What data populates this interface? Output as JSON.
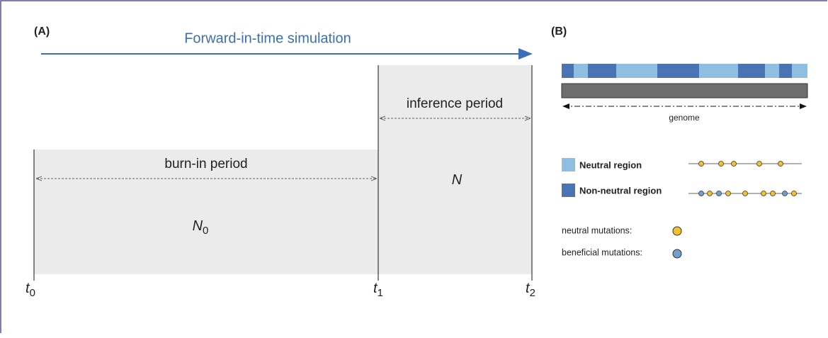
{
  "panel_a": {
    "label": "(A)",
    "arrow_title": "Forward-in-time simulation",
    "burn_in": {
      "label": "burn-in period",
      "size": {
        "main": "N",
        "sub": "0"
      }
    },
    "inference": {
      "label": "inference period",
      "size": {
        "main": "N"
      }
    },
    "times": [
      {
        "main": "t",
        "sub": "0"
      },
      {
        "main": "t",
        "sub": "1"
      },
      {
        "main": "t",
        "sub": "2"
      }
    ]
  },
  "panel_b": {
    "label": "(B)",
    "genome_label": "genome",
    "legend": [
      "Neutral region",
      "Non-neutral region"
    ],
    "mutations": [
      "neutral mutations:",
      "beneficial mutations:"
    ]
  }
}
